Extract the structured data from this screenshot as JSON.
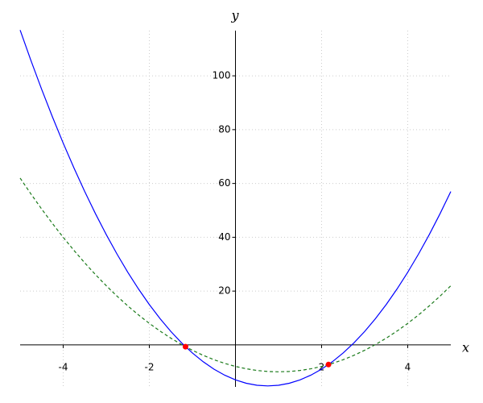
{
  "chart_data": {
    "type": "line",
    "x_label": "x",
    "y_label": "y",
    "x": [
      -5,
      -4.75,
      -4.5,
      -4.25,
      -4,
      -3.75,
      -3.5,
      -3.25,
      -3,
      -2.75,
      -2.5,
      -2.25,
      -2,
      -1.75,
      -1.5,
      -1.25,
      -1,
      -0.75,
      -0.5,
      -0.25,
      0,
      0.25,
      0.5,
      0.75,
      1,
      1.25,
      1.5,
      1.75,
      2,
      2.25,
      2.5,
      2.75,
      3,
      3.25,
      3.5,
      3.75,
      4,
      4.25,
      4.5,
      4.75,
      5
    ],
    "series": [
      {
        "color": "#0000ff",
        "dashed": false,
        "values": [
          117,
          105.75,
          95,
          84.75,
          75,
          65.75,
          57,
          48.75,
          41,
          33.75,
          27,
          20.75,
          15,
          9.75,
          5,
          0.75,
          -3,
          -6.25,
          -9,
          -11.25,
          -13,
          -14.25,
          -15,
          -15.25,
          -15,
          -14.25,
          -13,
          -11.25,
          -9,
          -6.25,
          -3,
          0.75,
          5,
          9.75,
          15,
          20.75,
          27,
          33.75,
          41,
          48.75,
          57
        ]
      },
      {
        "color": "#1a7a1a",
        "dashed": true,
        "values": [
          62,
          56.125,
          50.5,
          45.125,
          40,
          35.125,
          30.5,
          26.125,
          22,
          18.125,
          14.5,
          11.125,
          8,
          5.125,
          2.5,
          0.125,
          -2,
          -3.875,
          -5.5,
          -6.875,
          -8,
          -8.875,
          -9.5,
          -9.875,
          -10,
          -9.875,
          -9.5,
          -8.875,
          -8,
          -6.875,
          -5.5,
          -3.875,
          -2,
          0.125,
          2.5,
          5.125,
          8,
          11.125,
          14.5,
          18.125,
          22
        ]
      }
    ],
    "points": {
      "color": "#ff0000",
      "x": [
        -1.16,
        2.16
      ],
      "values": [
        -0.66,
        -7.3
      ]
    },
    "xlim": [
      -5,
      5
    ],
    "ylim": [
      -15.6,
      116.8
    ],
    "xticks": [
      -4,
      -2,
      2,
      4
    ],
    "yticks": [
      20,
      40,
      60,
      80,
      100
    ],
    "grid": true
  }
}
